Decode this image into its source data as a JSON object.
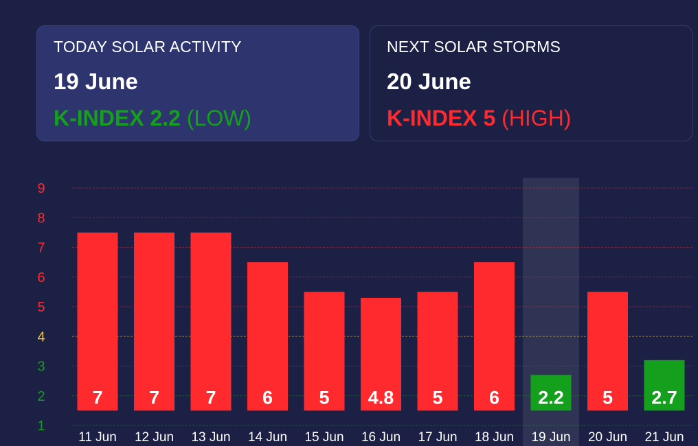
{
  "cards": {
    "today": {
      "title": "TODAY SOLAR ACTIVITY",
      "date": "19 June",
      "kindex_label": "K-INDEX 2.2",
      "level": "(LOW)"
    },
    "next": {
      "title": "NEXT SOLAR STORMS",
      "date": "20 June",
      "kindex_label": "K-INDEX 5",
      "level": "(HIGH)"
    }
  },
  "colors": {
    "background": "#1c2045",
    "high": "#ff2a2e",
    "moderate": "#f2c23a",
    "low": "#14a01c",
    "highlight_column": "#2f3454"
  },
  "chart_data": {
    "type": "bar",
    "categories": [
      "11 Jun",
      "12 Jun",
      "13 Jun",
      "14 Jun",
      "15 Jun",
      "16 Jun",
      "17 Jun",
      "18 Jun",
      "19 Jun",
      "20 Jun",
      "21 Jun"
    ],
    "values": [
      7,
      7,
      7,
      6,
      5,
      4.8,
      5,
      6,
      2.2,
      5,
      2.7
    ],
    "value_labels": [
      "7",
      "7",
      "7",
      "6",
      "5",
      "4.8",
      "5",
      "6",
      "2.2",
      "5",
      "2.7"
    ],
    "bar_colors": [
      "#ff2a2e",
      "#ff2a2e",
      "#ff2a2e",
      "#ff2a2e",
      "#ff2a2e",
      "#ff2a2e",
      "#ff2a2e",
      "#ff2a2e",
      "#14a01c",
      "#ff2a2e",
      "#14a01c"
    ],
    "highlighted_category": "19 Jun",
    "y_ticks": [
      "1",
      "2",
      "3",
      "4",
      "5",
      "6",
      "7",
      "8",
      "9"
    ],
    "y_tick_colors": [
      "#14a01c",
      "#14a01c",
      "#14a01c",
      "#f2c23a",
      "#ff2a2e",
      "#ff2a2e",
      "#ff2a2e",
      "#ff2a2e",
      "#ff2a2e"
    ],
    "ylim": [
      1,
      9
    ],
    "grid": true
  }
}
